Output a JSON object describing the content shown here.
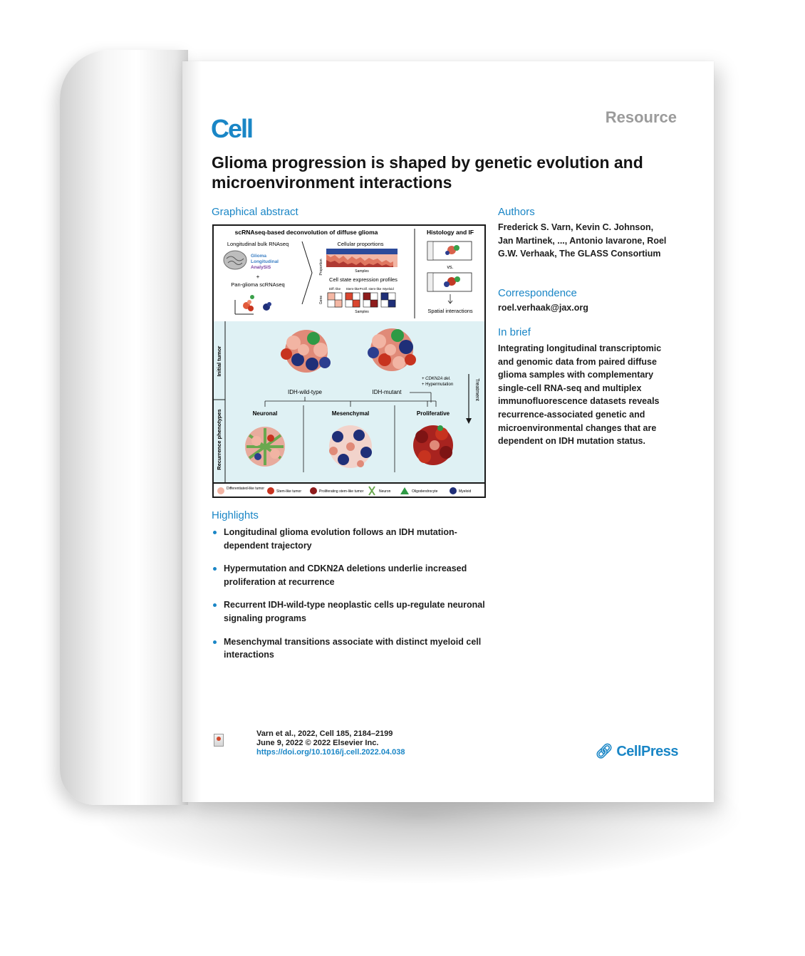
{
  "journal": {
    "logo": "Cell",
    "section": "Resource"
  },
  "title": "Glioma progression is shaped by genetic evolution and microenvironment interactions",
  "graphical_abstract": {
    "heading": "Graphical abstract",
    "top_title": "scRNAseq-based deconvolution of diffuse glioma",
    "histology_title": "Histology and IF",
    "longitudinal": "Longitudinal bulk RNAseq",
    "glass_logo": [
      "Glioma",
      "Longitudinal",
      "AnalySiS"
    ],
    "plus": "+",
    "pan_glioma": "Pan-glioma scRNAseq",
    "cellular_proportions": "Cellular proportions",
    "proportion_axis": "Proportion",
    "samples_axis": "Samples",
    "cell_state_profiles": "Cell state expression profiles",
    "gene_axis": "Gene",
    "states": [
      "Diff.-like",
      "Stem-like",
      "Prolif. stem-like",
      "Myeloid"
    ],
    "vs": "vs.",
    "spatial": "Spatial interactions",
    "initial_tumor": "Initial tumor",
    "recurrence_phenotypes": "Recurrence phenotypes",
    "treatment": "Treatment",
    "cdkn2a": "+ CDKN2A del.",
    "hypermutation": "+ Hypermutation",
    "idh_wt": "IDH-wild-type",
    "idh_mut": "IDH-mutant",
    "phenotypes": [
      "Neuronal",
      "Mesenchymal",
      "Proliferative"
    ],
    "legend": [
      "Differentiated-like tumor",
      "Stem-like tumor",
      "Proliferating stem-like tumor",
      "Neuron",
      "Oligodendrocyte",
      "Myeloid"
    ]
  },
  "highlights": {
    "heading": "Highlights",
    "items": [
      "Longitudinal glioma evolution follows an IDH mutation-dependent trajectory",
      "Hypermutation and CDKN2A deletions underlie increased proliferation at recurrence",
      "Recurrent IDH-wild-type neoplastic cells up-regulate neuronal signaling programs",
      "Mesenchymal transitions associate with distinct myeloid cell interactions"
    ]
  },
  "authors": {
    "heading": "Authors",
    "text": "Frederick S. Varn, Kevin C. Johnson, Jan Martinek, ..., Antonio Iavarone, Roel G.W. Verhaak, The GLASS Consortium"
  },
  "correspondence": {
    "heading": "Correspondence",
    "email": "roel.verhaak@jax.org"
  },
  "in_brief": {
    "heading": "In brief",
    "text": "Integrating longitudinal transcriptomic and genomic data from paired diffuse glioma samples with complementary single-cell RNA-seq and multiplex immunofluorescence datasets reveals recurrence-associated genetic and microenvironmental changes that are dependent on IDH mutation status."
  },
  "citation": {
    "line1": "Varn et al., 2022, Cell 185, 2184–2199",
    "line2": "June 9, 2022 © 2022 Elsevier Inc.",
    "doi": "https://doi.org/10.1016/j.cell.2022.04.038"
  },
  "publisher": "CellPress",
  "colors": {
    "accent": "#1a86c6",
    "section_gray": "#9b9b9b",
    "panel_bg": "#dff1f4"
  }
}
